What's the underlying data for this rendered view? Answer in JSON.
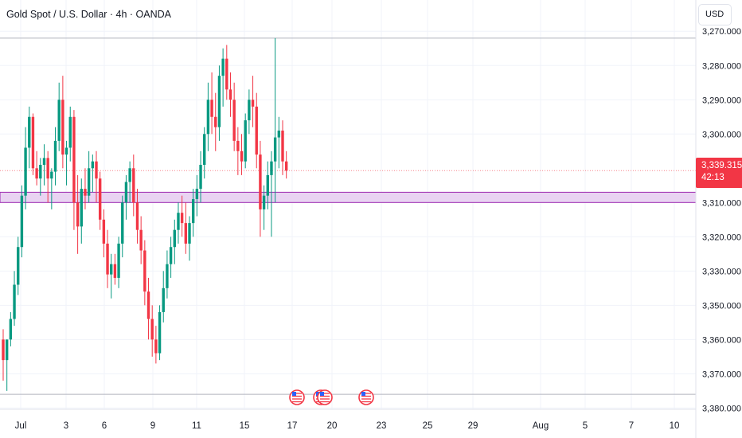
{
  "header": {
    "title": "Gold Spot / U.S. Dollar · 4h · OANDA",
    "currency": "USD"
  },
  "price_scale": {
    "ticks": [
      "3,380.000",
      "3,370.000",
      "3,360.000",
      "3,350.000",
      "3,330.000",
      "3,320.000",
      "3,310.000",
      "3,300.000",
      "3,290.000",
      "3,280.000",
      "3,270.000"
    ],
    "current_price": "3,339.315",
    "countdown": "42:13"
  },
  "time_axis": {
    "labels": [
      "Jul",
      "3",
      "6",
      "9",
      "11",
      "15",
      "17",
      "20",
      "23",
      "25",
      "29",
      "Aug",
      "5",
      "7",
      "10"
    ]
  },
  "colors": {
    "up": "#089981",
    "down": "#f23645",
    "zone_fill": "#e9d3f2",
    "zone_border": "#9c27b0",
    "current_line": "#f23645",
    "grid": "#f0f3fa",
    "axis_text": "#131722",
    "event_icon": "#f23645"
  },
  "annotations": {
    "zone": {
      "from": 3330,
      "to": 3333
    },
    "horizontal_line_top": 3378,
    "horizontal_line_bottom": 3274,
    "current_price_value": 3339.3
  },
  "events": [
    {
      "name": "us-economic-event",
      "day": "17"
    },
    {
      "name": "us-economic-event",
      "day": "19"
    },
    {
      "name": "us-economic-event",
      "day": "19b"
    },
    {
      "name": "us-economic-event",
      "day": "22"
    }
  ],
  "chart_data": {
    "type": "candlestick",
    "ylim": [
      3265,
      3385
    ],
    "y_ticks": [
      3270,
      3280,
      3290,
      3300,
      3310,
      3320,
      3330,
      3350,
      3360,
      3370,
      3380
    ],
    "candles": [
      [
        3290,
        3293,
        3278,
        3284
      ],
      [
        3284,
        3290,
        3275,
        3290
      ],
      [
        3290,
        3298,
        3288,
        3296
      ],
      [
        3296,
        3310,
        3294,
        3306
      ],
      [
        3306,
        3320,
        3303,
        3317
      ],
      [
        3317,
        3335,
        3314,
        3332
      ],
      [
        3332,
        3352,
        3328,
        3346
      ],
      [
        3346,
        3358,
        3340,
        3355
      ],
      [
        3355,
        3356,
        3338,
        3340
      ],
      [
        3340,
        3345,
        3335,
        3337
      ],
      [
        3337,
        3343,
        3332,
        3341
      ],
      [
        3341,
        3347,
        3335,
        3343
      ],
      [
        3343,
        3345,
        3330,
        3337
      ],
      [
        3337,
        3340,
        3328,
        3339
      ],
      [
        3339,
        3352,
        3335,
        3348
      ],
      [
        3348,
        3365,
        3345,
        3360
      ],
      [
        3360,
        3367,
        3340,
        3344
      ],
      [
        3344,
        3348,
        3335,
        3346
      ],
      [
        3346,
        3358,
        3342,
        3355
      ],
      [
        3355,
        3357,
        3322,
        3330
      ],
      [
        3330,
        3338,
        3315,
        3323
      ],
      [
        3323,
        3337,
        3318,
        3334
      ],
      [
        3334,
        3340,
        3328,
        3332
      ],
      [
        3332,
        3345,
        3330,
        3340
      ],
      [
        3340,
        3344,
        3333,
        3342
      ],
      [
        3342,
        3345,
        3330,
        3337
      ],
      [
        3337,
        3339,
        3322,
        3325
      ],
      [
        3325,
        3328,
        3314,
        3318
      ],
      [
        3318,
        3322,
        3305,
        3309
      ],
      [
        3309,
        3315,
        3302,
        3312
      ],
      [
        3312,
        3315,
        3306,
        3308
      ],
      [
        3308,
        3320,
        3305,
        3318
      ],
      [
        3318,
        3332,
        3314,
        3330
      ],
      [
        3330,
        3338,
        3325,
        3336
      ],
      [
        3336,
        3342,
        3330,
        3340
      ],
      [
        3340,
        3344,
        3326,
        3330
      ],
      [
        3330,
        3334,
        3318,
        3322
      ],
      [
        3322,
        3326,
        3312,
        3316
      ],
      [
        3316,
        3319,
        3300,
        3304
      ],
      [
        3304,
        3308,
        3290,
        3296
      ],
      [
        3296,
        3300,
        3285,
        3290
      ],
      [
        3290,
        3294,
        3283,
        3286
      ],
      [
        3286,
        3300,
        3284,
        3298
      ],
      [
        3298,
        3310,
        3295,
        3305
      ],
      [
        3305,
        3316,
        3302,
        3312
      ],
      [
        3312,
        3320,
        3308,
        3317
      ],
      [
        3317,
        3325,
        3312,
        3322
      ],
      [
        3322,
        3330,
        3318,
        3327
      ],
      [
        3327,
        3332,
        3320,
        3324
      ],
      [
        3324,
        3330,
        3315,
        3318
      ],
      [
        3318,
        3326,
        3313,
        3324
      ],
      [
        3324,
        3334,
        3320,
        3331
      ],
      [
        3331,
        3338,
        3326,
        3334
      ],
      [
        3334,
        3345,
        3330,
        3341
      ],
      [
        3341,
        3352,
        3337,
        3350
      ],
      [
        3350,
        3365,
        3345,
        3360
      ],
      [
        3360,
        3368,
        3350,
        3355
      ],
      [
        3355,
        3362,
        3345,
        3352
      ],
      [
        3352,
        3370,
        3348,
        3367
      ],
      [
        3367,
        3375,
        3358,
        3372
      ],
      [
        3372,
        3376,
        3360,
        3363
      ],
      [
        3363,
        3368,
        3355,
        3360
      ],
      [
        3360,
        3365,
        3345,
        3348
      ],
      [
        3348,
        3352,
        3338,
        3345
      ],
      [
        3345,
        3350,
        3338,
        3342
      ],
      [
        3342,
        3356,
        3340,
        3354
      ],
      [
        3354,
        3363,
        3350,
        3360
      ],
      [
        3360,
        3367,
        3352,
        3358
      ],
      [
        3358,
        3362,
        3340,
        3344
      ],
      [
        3344,
        3348,
        3320,
        3328
      ],
      [
        3328,
        3335,
        3322,
        3332
      ],
      [
        3332,
        3342,
        3328,
        3338
      ],
      [
        3338,
        3345,
        3320,
        3342
      ],
      [
        3342,
        3378,
        3330,
        3349
      ],
      [
        3349,
        3355,
        3340,
        3351
      ],
      [
        3351,
        3354,
        3338,
        3342
      ],
      [
        3342,
        3345,
        3337,
        3339.3
      ]
    ]
  }
}
